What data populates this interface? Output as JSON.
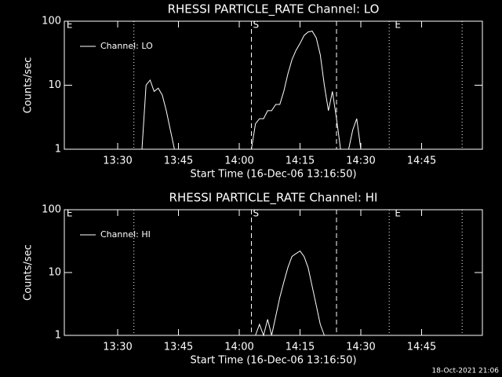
{
  "chart_data": [
    {
      "type": "line",
      "title": "RHESSI PARTICLE_RATE Channel: LO",
      "x_label": "Start Time (16-Dec-06 13:16:50)",
      "y_label": "Counts/sec",
      "xlim": [
        "13:16:50",
        "15:00"
      ],
      "xticks": [
        "13:30",
        "13:45",
        "14:00",
        "14:15",
        "14:30",
        "14:45"
      ],
      "ylim": [
        1,
        100
      ],
      "yticks": [
        1,
        10,
        100
      ],
      "log_y": true,
      "legend": "upper left",
      "x": [
        "13:36",
        "13:37",
        "13:38",
        "13:39",
        "13:40",
        "13:41",
        "13:42",
        "13:43",
        "13:44",
        "13:50",
        "14:03",
        "14:04",
        "14:05",
        "14:06",
        "14:07",
        "14:08",
        "14:09",
        "14:10",
        "14:11",
        "14:12",
        "14:13",
        "14:14",
        "14:15",
        "14:16",
        "14:17",
        "14:18",
        "14:19",
        "14:20",
        "14:21",
        "14:22",
        "14:23",
        "14:24",
        "14:25",
        "14:26",
        "14:27",
        "14:28",
        "14:29",
        "14:30"
      ],
      "series": [
        {
          "name": "Channel: LO",
          "color": "#ffffff",
          "values": [
            1,
            10,
            12,
            8,
            9,
            7,
            4,
            2,
            1,
            null,
            1,
            2.5,
            3,
            3,
            4,
            4,
            5,
            5,
            8,
            15,
            25,
            35,
            45,
            60,
            68,
            70,
            55,
            30,
            10,
            4,
            8,
            3,
            1,
            null,
            1,
            2,
            3,
            1
          ]
        }
      ],
      "markers": [
        {
          "x": "13:34",
          "style": "dotted"
        },
        {
          "x": "14:03",
          "style": "dashed"
        },
        {
          "x": "14:24",
          "style": "dashed"
        },
        {
          "x": "14:37",
          "style": "dotted"
        },
        {
          "x": "14:55",
          "style": "dotted"
        }
      ],
      "marker_labels": [
        {
          "x": "13:17",
          "text": "E"
        },
        {
          "x": "14:03",
          "text": "S"
        },
        {
          "x": "14:38",
          "text": "E"
        }
      ]
    },
    {
      "type": "line",
      "title": "RHESSI PARTICLE_RATE Channel: HI",
      "x_label": "Start Time (16-Dec-06 13:16:50)",
      "y_label": "Counts/sec",
      "xlim": [
        "13:16:50",
        "15:00"
      ],
      "xticks": [
        "13:30",
        "13:45",
        "14:00",
        "14:15",
        "14:30",
        "14:45"
      ],
      "ylim": [
        1,
        100
      ],
      "yticks": [
        1,
        10,
        100
      ],
      "log_y": true,
      "legend": "upper left",
      "x": [
        "14:04",
        "14:05",
        "14:06",
        "14:07",
        "14:08",
        "14:09",
        "14:10",
        "14:11",
        "14:12",
        "14:13",
        "14:14",
        "14:15",
        "14:16",
        "14:17",
        "14:18",
        "14:19",
        "14:20",
        "14:21"
      ],
      "series": [
        {
          "name": "Channel: HI",
          "color": "#ffffff",
          "values": [
            1,
            1.5,
            1,
            1.8,
            1,
            2,
            4,
            7,
            12,
            18,
            20,
            22,
            18,
            12,
            6,
            3,
            1.5,
            1
          ]
        }
      ],
      "markers": [
        {
          "x": "13:34",
          "style": "dotted"
        },
        {
          "x": "14:03",
          "style": "dashed"
        },
        {
          "x": "14:24",
          "style": "dashed"
        },
        {
          "x": "14:37",
          "style": "dotted"
        },
        {
          "x": "14:55",
          "style": "dotted"
        }
      ],
      "marker_labels": [
        {
          "x": "13:17",
          "text": "E"
        },
        {
          "x": "14:03",
          "text": "S"
        },
        {
          "x": "14:38",
          "text": "E"
        }
      ]
    }
  ],
  "footer": "18-Oct-2021 21:06"
}
